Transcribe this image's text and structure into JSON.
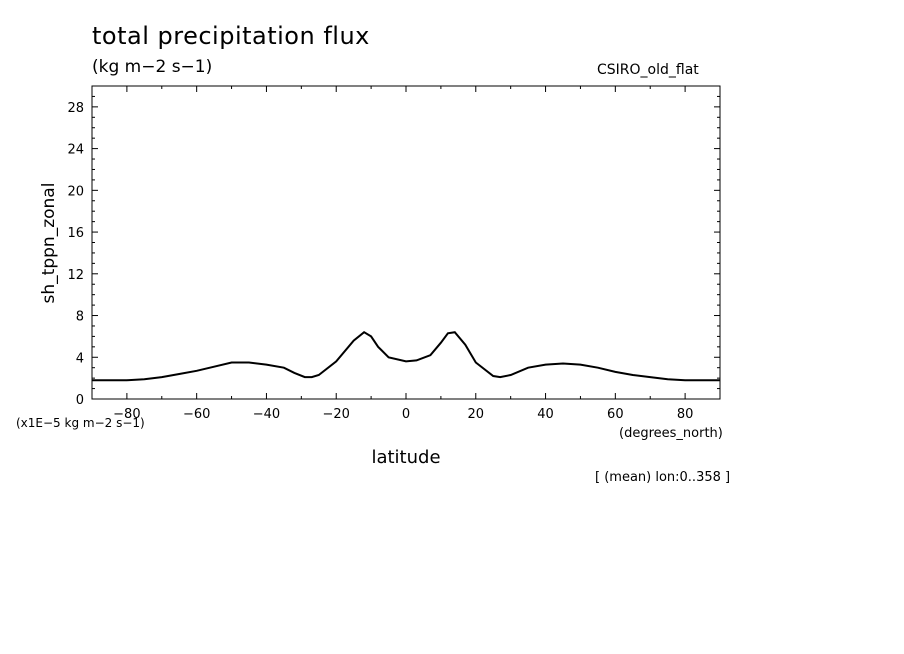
{
  "chart_data": {
    "type": "line",
    "title": "total precipitation flux",
    "units": "(kg m−2 s−1)",
    "model_label": "CSIRO_old_flat",
    "xlabel": "latitude",
    "ylabel": "sh_tppn_zonal",
    "x_units": "(degrees_north)",
    "y_scale_note": "(x1E−5 kg m−2 s−1)",
    "footnote": "[ (mean) lon:0..358 ]",
    "xlim": [
      -90,
      90
    ],
    "ylim": [
      0,
      30
    ],
    "xticks": [
      -80,
      -60,
      -40,
      -20,
      0,
      20,
      40,
      60,
      80
    ],
    "xtick_labels": [
      "−80",
      "−60",
      "−40",
      "−20",
      "0",
      "20",
      "40",
      "60",
      "80"
    ],
    "yticks": [
      0,
      4,
      8,
      12,
      16,
      20,
      24,
      28
    ],
    "ytick_labels": [
      "0",
      "4",
      "8",
      "12",
      "16",
      "20",
      "24",
      "28"
    ],
    "grid": false,
    "series": [
      {
        "color": "#000000",
        "x": [
          -90,
          -85,
          -80,
          -75,
          -70,
          -65,
          -60,
          -55,
          -50,
          -47,
          -45,
          -40,
          -35,
          -32,
          -29,
          -27,
          -25,
          -20,
          -15,
          -12,
          -10,
          -8,
          -5,
          0,
          3,
          7,
          10,
          12,
          14,
          17,
          20,
          25,
          27,
          30,
          35,
          40,
          45,
          50,
          55,
          60,
          65,
          70,
          75,
          80,
          85,
          90
        ],
        "y": [
          1.8,
          1.8,
          1.8,
          1.9,
          2.1,
          2.4,
          2.7,
          3.1,
          3.5,
          3.5,
          3.5,
          3.3,
          3.0,
          2.5,
          2.1,
          2.1,
          2.3,
          3.6,
          5.6,
          6.4,
          6.0,
          5.0,
          4.0,
          3.6,
          3.7,
          4.2,
          5.4,
          6.3,
          6.4,
          5.2,
          3.5,
          2.2,
          2.1,
          2.3,
          3.0,
          3.3,
          3.4,
          3.3,
          3.0,
          2.6,
          2.3,
          2.1,
          1.9,
          1.8,
          1.8,
          1.8
        ]
      }
    ]
  }
}
